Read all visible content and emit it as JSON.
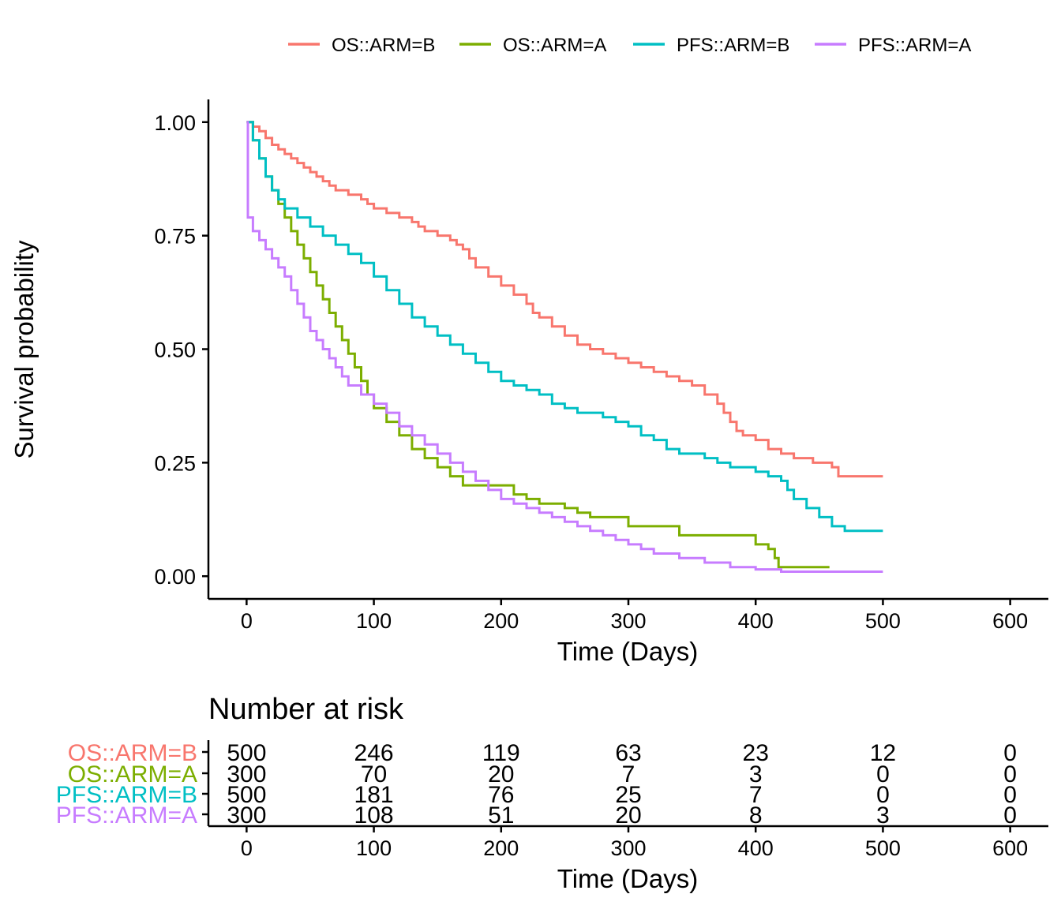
{
  "chart_data": [
    {
      "type": "line",
      "step": true,
      "title": "",
      "xlabel": "Time (Days)",
      "ylabel": "Survival probability",
      "xlim": [
        -30,
        630
      ],
      "ylim": [
        -0.05,
        1.05
      ],
      "x_ticks": [
        0,
        100,
        200,
        300,
        400,
        500,
        600
      ],
      "x_tick_labels": [
        "0",
        "100",
        "200",
        "300",
        "400",
        "500",
        "600"
      ],
      "y_ticks": [
        0,
        0.25,
        0.5,
        0.75,
        1
      ],
      "y_tick_labels": [
        "0.00",
        "0.25",
        "0.50",
        "0.75",
        "1.00"
      ],
      "grid": false,
      "legend": {
        "position": "top"
      },
      "series": [
        {
          "name": "OS::ARM=B",
          "color": "#F8766D",
          "points": [
            [
              0,
              1.0
            ],
            [
              5,
              0.99
            ],
            [
              10,
              0.98
            ],
            [
              15,
              0.965
            ],
            [
              20,
              0.95
            ],
            [
              25,
              0.94
            ],
            [
              30,
              0.93
            ],
            [
              35,
              0.92
            ],
            [
              40,
              0.91
            ],
            [
              45,
              0.9
            ],
            [
              50,
              0.89
            ],
            [
              55,
              0.88
            ],
            [
              60,
              0.87
            ],
            [
              65,
              0.86
            ],
            [
              70,
              0.85
            ],
            [
              80,
              0.84
            ],
            [
              90,
              0.83
            ],
            [
              95,
              0.82
            ],
            [
              100,
              0.81
            ],
            [
              110,
              0.8
            ],
            [
              120,
              0.79
            ],
            [
              130,
              0.78
            ],
            [
              135,
              0.77
            ],
            [
              140,
              0.76
            ],
            [
              150,
              0.75
            ],
            [
              160,
              0.74
            ],
            [
              165,
              0.73
            ],
            [
              170,
              0.72
            ],
            [
              175,
              0.7
            ],
            [
              180,
              0.68
            ],
            [
              190,
              0.66
            ],
            [
              200,
              0.64
            ],
            [
              210,
              0.62
            ],
            [
              220,
              0.6
            ],
            [
              225,
              0.58
            ],
            [
              230,
              0.57
            ],
            [
              240,
              0.55
            ],
            [
              250,
              0.53
            ],
            [
              260,
              0.51
            ],
            [
              270,
              0.5
            ],
            [
              280,
              0.49
            ],
            [
              290,
              0.48
            ],
            [
              300,
              0.47
            ],
            [
              310,
              0.46
            ],
            [
              320,
              0.45
            ],
            [
              330,
              0.44
            ],
            [
              340,
              0.43
            ],
            [
              350,
              0.42
            ],
            [
              360,
              0.4
            ],
            [
              370,
              0.38
            ],
            [
              375,
              0.36
            ],
            [
              380,
              0.34
            ],
            [
              385,
              0.32
            ],
            [
              390,
              0.31
            ],
            [
              400,
              0.3
            ],
            [
              410,
              0.28
            ],
            [
              420,
              0.27
            ],
            [
              430,
              0.26
            ],
            [
              445,
              0.25
            ],
            [
              460,
              0.24
            ],
            [
              465,
              0.22
            ],
            [
              500,
              0.22
            ]
          ]
        },
        {
          "name": "OS::ARM=A",
          "color": "#7CAE00",
          "points": [
            [
              0,
              1.0
            ],
            [
              5,
              0.96
            ],
            [
              10,
              0.92
            ],
            [
              15,
              0.88
            ],
            [
              20,
              0.85
            ],
            [
              25,
              0.82
            ],
            [
              30,
              0.79
            ],
            [
              35,
              0.76
            ],
            [
              40,
              0.73
            ],
            [
              45,
              0.7
            ],
            [
              50,
              0.67
            ],
            [
              55,
              0.64
            ],
            [
              60,
              0.61
            ],
            [
              65,
              0.58
            ],
            [
              70,
              0.55
            ],
            [
              75,
              0.52
            ],
            [
              80,
              0.49
            ],
            [
              85,
              0.46
            ],
            [
              90,
              0.43
            ],
            [
              95,
              0.4
            ],
            [
              100,
              0.37
            ],
            [
              110,
              0.34
            ],
            [
              120,
              0.31
            ],
            [
              130,
              0.28
            ],
            [
              140,
              0.26
            ],
            [
              150,
              0.24
            ],
            [
              160,
              0.22
            ],
            [
              170,
              0.2
            ],
            [
              200,
              0.2
            ],
            [
              210,
              0.18
            ],
            [
              220,
              0.17
            ],
            [
              230,
              0.16
            ],
            [
              250,
              0.15
            ],
            [
              260,
              0.14
            ],
            [
              270,
              0.13
            ],
            [
              300,
              0.11
            ],
            [
              330,
              0.11
            ],
            [
              340,
              0.09
            ],
            [
              390,
              0.09
            ],
            [
              400,
              0.07
            ],
            [
              410,
              0.06
            ],
            [
              415,
              0.04
            ],
            [
              418,
              0.02
            ],
            [
              458,
              0.02
            ]
          ]
        },
        {
          "name": "PFS::ARM=B",
          "color": "#00BFC4",
          "points": [
            [
              0,
              1.0
            ],
            [
              5,
              0.96
            ],
            [
              10,
              0.92
            ],
            [
              15,
              0.88
            ],
            [
              20,
              0.85
            ],
            [
              25,
              0.83
            ],
            [
              30,
              0.81
            ],
            [
              40,
              0.79
            ],
            [
              50,
              0.77
            ],
            [
              60,
              0.75
            ],
            [
              70,
              0.73
            ],
            [
              80,
              0.71
            ],
            [
              90,
              0.69
            ],
            [
              100,
              0.66
            ],
            [
              110,
              0.63
            ],
            [
              120,
              0.6
            ],
            [
              130,
              0.57
            ],
            [
              140,
              0.55
            ],
            [
              150,
              0.53
            ],
            [
              160,
              0.51
            ],
            [
              170,
              0.49
            ],
            [
              180,
              0.47
            ],
            [
              190,
              0.45
            ],
            [
              200,
              0.43
            ],
            [
              210,
              0.42
            ],
            [
              220,
              0.41
            ],
            [
              230,
              0.4
            ],
            [
              240,
              0.38
            ],
            [
              250,
              0.37
            ],
            [
              260,
              0.36
            ],
            [
              280,
              0.35
            ],
            [
              290,
              0.34
            ],
            [
              300,
              0.33
            ],
            [
              310,
              0.31
            ],
            [
              320,
              0.3
            ],
            [
              330,
              0.28
            ],
            [
              340,
              0.27
            ],
            [
              360,
              0.26
            ],
            [
              370,
              0.25
            ],
            [
              380,
              0.24
            ],
            [
              400,
              0.23
            ],
            [
              410,
              0.22
            ],
            [
              420,
              0.21
            ],
            [
              425,
              0.19
            ],
            [
              430,
              0.17
            ],
            [
              440,
              0.15
            ],
            [
              450,
              0.13
            ],
            [
              460,
              0.11
            ],
            [
              470,
              0.1
            ],
            [
              500,
              0.1
            ]
          ]
        },
        {
          "name": "PFS::ARM=A",
          "color": "#C77CFF",
          "points": [
            [
              0,
              1.0
            ],
            [
              1,
              0.79
            ],
            [
              5,
              0.76
            ],
            [
              10,
              0.74
            ],
            [
              15,
              0.72
            ],
            [
              20,
              0.7
            ],
            [
              25,
              0.68
            ],
            [
              30,
              0.66
            ],
            [
              35,
              0.63
            ],
            [
              40,
              0.6
            ],
            [
              45,
              0.57
            ],
            [
              50,
              0.54
            ],
            [
              55,
              0.52
            ],
            [
              60,
              0.5
            ],
            [
              65,
              0.48
            ],
            [
              70,
              0.46
            ],
            [
              75,
              0.44
            ],
            [
              80,
              0.42
            ],
            [
              90,
              0.4
            ],
            [
              100,
              0.38
            ],
            [
              110,
              0.36
            ],
            [
              120,
              0.33
            ],
            [
              130,
              0.31
            ],
            [
              140,
              0.29
            ],
            [
              150,
              0.27
            ],
            [
              160,
              0.25
            ],
            [
              170,
              0.23
            ],
            [
              180,
              0.21
            ],
            [
              190,
              0.19
            ],
            [
              200,
              0.17
            ],
            [
              210,
              0.16
            ],
            [
              220,
              0.15
            ],
            [
              230,
              0.14
            ],
            [
              240,
              0.13
            ],
            [
              250,
              0.12
            ],
            [
              260,
              0.11
            ],
            [
              270,
              0.1
            ],
            [
              280,
              0.09
            ],
            [
              290,
              0.08
            ],
            [
              300,
              0.07
            ],
            [
              310,
              0.06
            ],
            [
              320,
              0.05
            ],
            [
              340,
              0.04
            ],
            [
              360,
              0.03
            ],
            [
              380,
              0.02
            ],
            [
              400,
              0.015
            ],
            [
              420,
              0.01
            ],
            [
              500,
              0.01
            ]
          ]
        }
      ]
    },
    {
      "type": "table",
      "title": "Number at risk",
      "xlabel": "Time (Days)",
      "xlim": [
        -30,
        630
      ],
      "x_ticks": [
        0,
        100,
        200,
        300,
        400,
        500,
        600
      ],
      "x_tick_labels": [
        "0",
        "100",
        "200",
        "300",
        "400",
        "500",
        "600"
      ],
      "rows": [
        {
          "name": "OS::ARM=B",
          "color": "#F8766D",
          "values": [
            "500",
            "246",
            "119",
            "63",
            "23",
            "12",
            "0"
          ]
        },
        {
          "name": "OS::ARM=A",
          "color": "#7CAE00",
          "values": [
            "300",
            "70",
            "20",
            "7",
            "3",
            "0",
            "0"
          ]
        },
        {
          "name": "PFS::ARM=B",
          "color": "#00BFC4",
          "values": [
            "500",
            "181",
            "76",
            "25",
            "7",
            "0",
            "0"
          ]
        },
        {
          "name": "PFS::ARM=A",
          "color": "#C77CFF",
          "values": [
            "300",
            "108",
            "51",
            "20",
            "8",
            "3",
            "0"
          ]
        }
      ]
    }
  ]
}
